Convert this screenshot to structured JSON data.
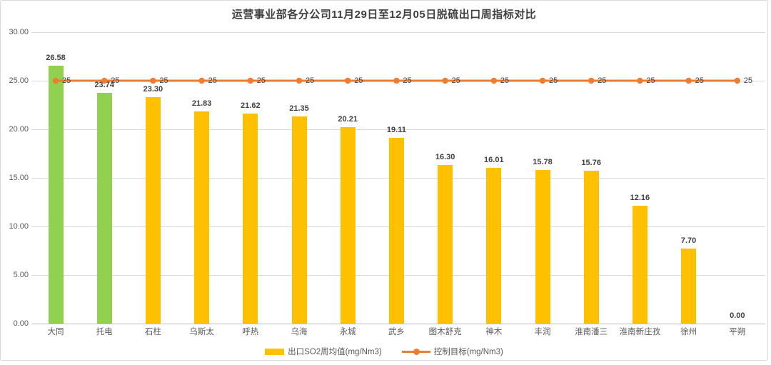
{
  "chart_data": {
    "type": "bar",
    "title": "运营事业部各分公司11月29日至12月05日脱硫出口周指标对比",
    "categories": [
      "大同",
      "托电",
      "石柱",
      "乌斯太",
      "呼热",
      "乌海",
      "永城",
      "武乡",
      "图木舒克",
      "神木",
      "丰润",
      "淮南潘三",
      "淮南新庄孜",
      "徐州",
      "平朔"
    ],
    "series": [
      {
        "name": "出口SO2周均值(mg/Nm3)",
        "type": "bar",
        "values": [
          26.58,
          23.74,
          23.3,
          21.83,
          21.62,
          21.35,
          20.21,
          19.11,
          16.3,
          16.01,
          15.78,
          15.76,
          12.16,
          7.7,
          0.0
        ],
        "color": "#FFC000",
        "highlight_color": "#92D050",
        "highlight_indices": [
          0,
          1
        ]
      },
      {
        "name": "控制目标(mg/Nm3)",
        "type": "line",
        "values": [
          25,
          25,
          25,
          25,
          25,
          25,
          25,
          25,
          25,
          25,
          25,
          25,
          25,
          25,
          25
        ],
        "point_label": "25",
        "color": "#ED7D31"
      }
    ],
    "xlabel": "",
    "ylabel": "",
    "ylim": [
      0,
      30
    ],
    "ytick_step": 5,
    "ytick_labels": [
      "0.00",
      "5.00",
      "10.00",
      "15.00",
      "20.00",
      "25.00",
      "30.00"
    ],
    "grid": true,
    "legend_position": "bottom"
  },
  "legend": {
    "bar_label": "出口SO2周均值(mg/Nm3)",
    "line_label": "控制目标(mg/Nm3)"
  },
  "colors": {
    "bar": "#FFC000",
    "bar_highlight": "#92D050",
    "line": "#ED7D31",
    "gridline": "#d9d9d9",
    "axis_text": "#595959",
    "label_text": "#404040"
  }
}
